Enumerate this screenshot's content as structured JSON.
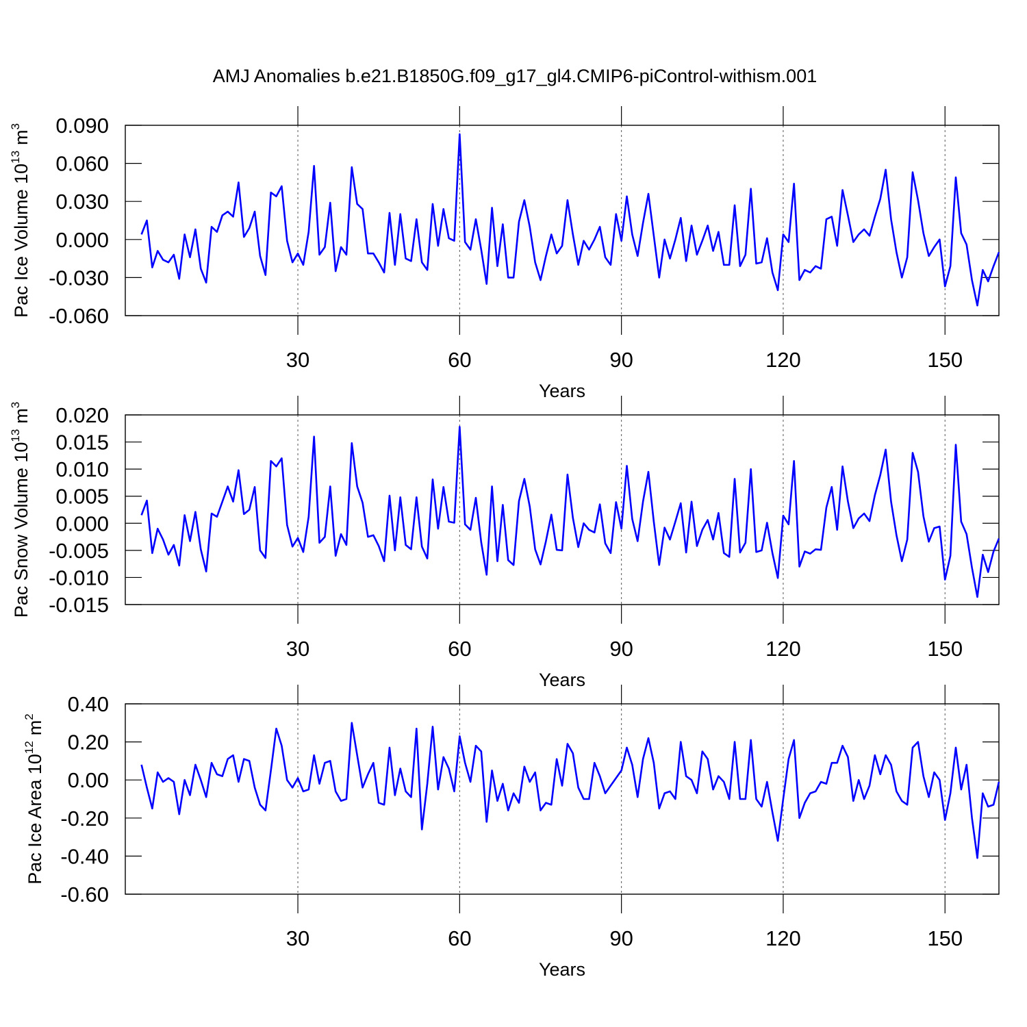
{
  "chart_data": [
    {
      "type": "line",
      "title": "AMJ Anomalies b.e21.B1850G.f09_g17_gl4.CMIP6-piControl-withism.001",
      "xlabel": "Years",
      "ylabel": "Pac Ice Volume 10",
      "ylabel_power": "13",
      "ylabel_unit": "m",
      "ylabel_unit_power": "3",
      "color": "#0000ff",
      "grid": true,
      "xlim": [
        -2,
        160
      ],
      "xticks": [
        30,
        60,
        90,
        120,
        150
      ],
      "ylim": [
        -0.06,
        0.09
      ],
      "yticks": [
        {
          "value": 0.09,
          "label": "0.090"
        },
        {
          "value": 0.06,
          "label": "0.060"
        },
        {
          "value": 0.03,
          "label": "0.030"
        },
        {
          "value": 0,
          "label": "0.000"
        },
        {
          "value": -0.03,
          "label": "-0.030"
        },
        {
          "value": -0.06,
          "label": "-0.060"
        }
      ],
      "x": [
        1,
        2,
        3,
        4,
        5,
        6,
        7,
        8,
        9,
        10,
        11,
        12,
        13,
        14,
        15,
        16,
        17,
        18,
        19,
        20,
        21,
        22,
        23,
        24,
        25,
        26,
        27,
        28,
        29,
        30,
        31,
        32,
        33,
        34,
        35,
        36,
        37,
        38,
        39,
        40,
        41,
        42,
        43,
        44,
        45,
        46,
        47,
        48,
        49,
        50,
        51,
        52,
        53,
        54,
        55,
        56,
        57,
        58,
        59,
        60,
        61,
        62,
        63,
        64,
        65,
        66,
        67,
        68,
        69,
        70,
        71,
        72,
        73,
        74,
        75,
        76,
        77,
        78,
        79,
        80,
        81,
        82,
        83,
        84,
        85,
        86,
        87,
        88,
        89,
        90,
        91,
        92,
        93,
        94,
        95,
        96,
        97,
        98,
        99,
        100,
        101,
        102,
        103,
        104,
        105,
        106,
        107,
        108,
        109,
        110,
        111,
        112,
        113,
        114,
        115,
        116,
        117,
        118,
        119,
        120,
        121,
        122,
        123,
        124,
        125,
        126,
        127,
        128,
        129,
        130,
        131,
        132,
        133,
        134,
        135,
        136,
        137,
        138,
        139,
        140,
        141,
        142,
        143,
        144,
        145,
        146,
        147,
        148,
        149,
        150,
        151,
        152,
        153,
        154,
        155,
        156,
        157,
        158,
        159,
        160
      ],
      "values": [
        0.004,
        0.015,
        -0.022,
        -0.009,
        -0.016,
        -0.018,
        -0.012,
        -0.031,
        0.004,
        -0.014,
        0.008,
        -0.023,
        -0.034,
        0.01,
        0.006,
        0.019,
        0.022,
        0.018,
        0.045,
        0.002,
        0.009,
        0.022,
        -0.013,
        -0.028,
        0.037,
        0.034,
        0.042,
        -0.001,
        -0.018,
        -0.011,
        -0.02,
        0.006,
        0.058,
        -0.012,
        -0.006,
        0.029,
        -0.025,
        -0.006,
        -0.012,
        0.057,
        0.028,
        0.024,
        -0.011,
        -0.011,
        -0.018,
        -0.026,
        0.021,
        -0.02,
        0.02,
        -0.015,
        -0.017,
        0.016,
        -0.018,
        -0.024,
        0.028,
        -0.005,
        0.024,
        0.001,
        -0.001,
        0.083,
        -0.002,
        -0.008,
        0.016,
        -0.008,
        -0.035,
        0.025,
        -0.021,
        0.012,
        -0.03,
        -0.03,
        0.014,
        0.031,
        0.01,
        -0.018,
        -0.032,
        -0.013,
        0.004,
        -0.011,
        -0.005,
        0.031,
        0.004,
        -0.02,
        -0.001,
        -0.008,
        0.0,
        0.01,
        -0.014,
        -0.02,
        0.02,
        -0.001,
        0.034,
        0.004,
        -0.013,
        0.013,
        0.036,
        0.003,
        -0.03,
        0.0,
        -0.015,
        0.0,
        0.017,
        -0.017,
        0.011,
        -0.012,
        -0.001,
        0.011,
        -0.009,
        0.006,
        -0.02,
        -0.02,
        0.027,
        -0.021,
        -0.012,
        0.04,
        -0.019,
        -0.018,
        0.001,
        -0.026,
        -0.04,
        0.004,
        -0.002,
        0.044,
        -0.032,
        -0.024,
        -0.026,
        -0.021,
        -0.023,
        0.016,
        0.018,
        -0.005,
        0.039,
        0.019,
        -0.002,
        0.004,
        0.008,
        0.003,
        0.018,
        0.032,
        0.055,
        0.016,
        -0.01,
        -0.03,
        -0.014,
        0.053,
        0.031,
        0.005,
        -0.013,
        -0.006,
        0.0,
        -0.037,
        -0.021,
        0.049,
        0.005,
        -0.004,
        -0.032,
        -0.052,
        -0.024,
        -0.033,
        -0.021,
        -0.01
      ]
    },
    {
      "type": "line",
      "xlabel": "Years",
      "ylabel": "Pac Snow Volume 10",
      "ylabel_power": "13",
      "ylabel_unit": "m",
      "ylabel_unit_power": "3",
      "color": "#0000ff",
      "grid": true,
      "xlim": [
        -2,
        160
      ],
      "xticks": [
        30,
        60,
        90,
        120,
        150
      ],
      "ylim": [
        -0.015,
        0.02
      ],
      "yticks": [
        {
          "value": 0.02,
          "label": "0.020"
        },
        {
          "value": 0.015,
          "label": "0.015"
        },
        {
          "value": 0.01,
          "label": "0.010"
        },
        {
          "value": 0.005,
          "label": "0.005"
        },
        {
          "value": 0,
          "label": "0.000"
        },
        {
          "value": -0.005,
          "label": "-0.005"
        },
        {
          "value": -0.01,
          "label": "-0.010"
        },
        {
          "value": -0.015,
          "label": "-0.015"
        }
      ],
      "x": [
        1,
        2,
        3,
        4,
        5,
        6,
        7,
        8,
        9,
        10,
        11,
        12,
        13,
        14,
        15,
        16,
        17,
        18,
        19,
        20,
        21,
        22,
        23,
        24,
        25,
        26,
        27,
        28,
        29,
        30,
        31,
        32,
        33,
        34,
        35,
        36,
        37,
        38,
        39,
        40,
        41,
        42,
        43,
        44,
        45,
        46,
        47,
        48,
        49,
        50,
        51,
        52,
        53,
        54,
        55,
        56,
        57,
        58,
        59,
        60,
        61,
        62,
        63,
        64,
        65,
        66,
        67,
        68,
        69,
        70,
        71,
        72,
        73,
        74,
        75,
        76,
        77,
        78,
        79,
        80,
        81,
        82,
        83,
        84,
        85,
        86,
        87,
        88,
        89,
        90,
        91,
        92,
        93,
        94,
        95,
        96,
        97,
        98,
        99,
        100,
        101,
        102,
        103,
        104,
        105,
        106,
        107,
        108,
        109,
        110,
        111,
        112,
        113,
        114,
        115,
        116,
        117,
        118,
        119,
        120,
        121,
        122,
        123,
        124,
        125,
        126,
        127,
        128,
        129,
        130,
        131,
        132,
        133,
        134,
        135,
        136,
        137,
        138,
        139,
        140,
        141,
        142,
        143,
        144,
        145,
        146,
        147,
        148,
        149,
        150,
        151,
        152,
        153,
        154,
        155,
        156,
        157,
        158,
        159,
        160
      ],
      "values": [
        0.0015,
        0.0042,
        -0.0055,
        -0.001,
        -0.003,
        -0.0058,
        -0.004,
        -0.0078,
        0.0015,
        -0.0033,
        0.0021,
        -0.0048,
        -0.0089,
        0.0018,
        0.0012,
        0.004,
        0.0068,
        0.004,
        0.0098,
        0.0017,
        0.0025,
        0.0067,
        -0.005,
        -0.0064,
        0.0115,
        0.0105,
        0.012,
        -0.0003,
        -0.0043,
        -0.0027,
        -0.0053,
        0.0012,
        0.016,
        -0.0036,
        -0.0025,
        0.0068,
        -0.006,
        -0.002,
        -0.004,
        0.0148,
        0.0068,
        0.0038,
        -0.0025,
        -0.0022,
        -0.0042,
        -0.007,
        0.0051,
        -0.005,
        0.0048,
        -0.004,
        -0.0048,
        0.0048,
        -0.0043,
        -0.0065,
        0.0081,
        -0.001,
        0.0067,
        0.0003,
        0.0001,
        0.0178,
        -0.0002,
        -0.0012,
        0.0047,
        -0.0035,
        -0.0095,
        0.0068,
        -0.007,
        0.0034,
        -0.0068,
        -0.0077,
        0.0041,
        0.0082,
        0.0031,
        -0.0048,
        -0.0076,
        -0.0033,
        0.0016,
        -0.0049,
        -0.005,
        0.009,
        0.001,
        -0.0044,
        0.0,
        -0.0012,
        -0.0017,
        0.0035,
        -0.0037,
        -0.0055,
        0.0039,
        -0.001,
        0.0106,
        0.0008,
        -0.0033,
        0.004,
        0.0095,
        0.0003,
        -0.0077,
        -0.0008,
        -0.003,
        0.0003,
        0.0037,
        -0.0054,
        0.004,
        -0.0042,
        -0.0012,
        0.0006,
        -0.003,
        0.0019,
        -0.0055,
        -0.0062,
        0.0082,
        -0.0054,
        -0.0036,
        0.01,
        -0.0053,
        -0.005,
        0.0001,
        -0.0055,
        -0.0101,
        0.0014,
        -0.0002,
        0.0115,
        -0.008,
        -0.0052,
        -0.0056,
        -0.0048,
        -0.0049,
        0.0029,
        0.0067,
        -0.0012,
        0.0105,
        0.004,
        -0.0009,
        0.0009,
        0.0018,
        0.0004,
        0.0052,
        0.0089,
        0.0136,
        0.004,
        -0.0022,
        -0.007,
        -0.003,
        0.013,
        0.0095,
        0.0013,
        -0.0034,
        -0.0009,
        -0.0006,
        -0.0104,
        -0.006,
        0.0145,
        0.0003,
        -0.002,
        -0.0082,
        -0.0136,
        -0.0058,
        -0.009,
        -0.0052,
        -0.0028
      ]
    },
    {
      "type": "line",
      "xlabel": "Years",
      "ylabel": "Pac Ice Area 10",
      "ylabel_power": "12",
      "ylabel_unit": "m",
      "ylabel_unit_power": "2",
      "color": "#0000ff",
      "grid": true,
      "xlim": [
        -2,
        160
      ],
      "xticks": [
        30,
        60,
        90,
        120,
        150
      ],
      "ylim": [
        -0.6,
        0.4
      ],
      "yticks": [
        {
          "value": 0.4,
          "label": "0.40"
        },
        {
          "value": 0.2,
          "label": "0.20"
        },
        {
          "value": 0,
          "label": "0.00"
        },
        {
          "value": -0.2,
          "label": "-0.20"
        },
        {
          "value": -0.4,
          "label": "-0.40"
        },
        {
          "value": -0.6,
          "label": "-0.60"
        }
      ],
      "x": [
        1,
        2,
        3,
        4,
        5,
        6,
        7,
        8,
        9,
        10,
        11,
        12,
        13,
        14,
        15,
        16,
        17,
        18,
        19,
        20,
        21,
        22,
        23,
        24,
        25,
        26,
        27,
        28,
        29,
        30,
        31,
        32,
        33,
        34,
        35,
        36,
        37,
        38,
        39,
        40,
        41,
        42,
        43,
        44,
        45,
        46,
        47,
        48,
        49,
        50,
        51,
        52,
        53,
        54,
        55,
        56,
        57,
        58,
        59,
        60,
        61,
        62,
        63,
        64,
        65,
        66,
        67,
        68,
        69,
        70,
        71,
        72,
        73,
        74,
        75,
        76,
        77,
        78,
        79,
        80,
        81,
        82,
        83,
        84,
        85,
        86,
        87,
        88,
        89,
        90,
        91,
        92,
        93,
        94,
        95,
        96,
        97,
        98,
        99,
        100,
        101,
        102,
        103,
        104,
        105,
        106,
        107,
        108,
        109,
        110,
        111,
        112,
        113,
        114,
        115,
        116,
        117,
        118,
        119,
        120,
        121,
        122,
        123,
        124,
        125,
        126,
        127,
        128,
        129,
        130,
        131,
        132,
        133,
        134,
        135,
        136,
        137,
        138,
        139,
        140,
        141,
        142,
        143,
        144,
        145,
        146,
        147,
        148,
        149,
        150,
        151,
        152,
        153,
        154,
        155,
        156,
        157,
        158,
        159,
        160
      ],
      "values": [
        0.08,
        -0.04,
        -0.15,
        0.04,
        -0.01,
        0.01,
        -0.01,
        -0.18,
        0.0,
        -0.08,
        0.08,
        0.0,
        -0.09,
        0.09,
        0.03,
        0.02,
        0.11,
        0.13,
        -0.01,
        0.11,
        0.1,
        -0.04,
        -0.13,
        -0.16,
        0.05,
        0.27,
        0.18,
        0.0,
        -0.04,
        0.01,
        -0.06,
        -0.05,
        0.13,
        -0.02,
        0.09,
        0.1,
        -0.06,
        -0.11,
        -0.1,
        0.3,
        0.13,
        -0.04,
        0.03,
        0.09,
        -0.12,
        -0.13,
        0.17,
        -0.08,
        0.06,
        -0.06,
        -0.09,
        0.27,
        -0.26,
        -0.02,
        0.28,
        -0.05,
        0.12,
        0.06,
        -0.06,
        0.23,
        0.09,
        -0.01,
        0.18,
        0.15,
        -0.22,
        0.05,
        -0.11,
        -0.02,
        -0.16,
        -0.07,
        -0.12,
        0.07,
        -0.01,
        0.04,
        -0.16,
        -0.12,
        -0.13,
        0.11,
        -0.03,
        0.19,
        0.14,
        -0.04,
        -0.1,
        -0.1,
        0.09,
        0.02,
        -0.07,
        -0.03,
        0.01,
        0.05,
        0.17,
        0.08,
        -0.09,
        0.11,
        0.22,
        0.09,
        -0.15,
        -0.07,
        -0.06,
        -0.1,
        0.2,
        0.02,
        0.0,
        -0.07,
        0.15,
        0.11,
        -0.05,
        0.02,
        -0.01,
        -0.1,
        0.2,
        -0.1,
        -0.1,
        0.21,
        -0.1,
        -0.14,
        -0.01,
        -0.17,
        -0.32,
        -0.1,
        0.11,
        0.21,
        -0.2,
        -0.12,
        -0.07,
        -0.06,
        -0.01,
        -0.02,
        0.09,
        0.09,
        0.18,
        0.12,
        -0.11,
        0.0,
        -0.1,
        -0.03,
        0.13,
        0.03,
        0.13,
        0.08,
        -0.06,
        -0.11,
        -0.13,
        0.17,
        0.2,
        0.02,
        -0.09,
        0.04,
        0.0,
        -0.21,
        -0.07,
        0.17,
        -0.05,
        0.08,
        -0.2,
        -0.41,
        -0.07,
        -0.14,
        -0.13,
        -0.01
      ]
    }
  ]
}
